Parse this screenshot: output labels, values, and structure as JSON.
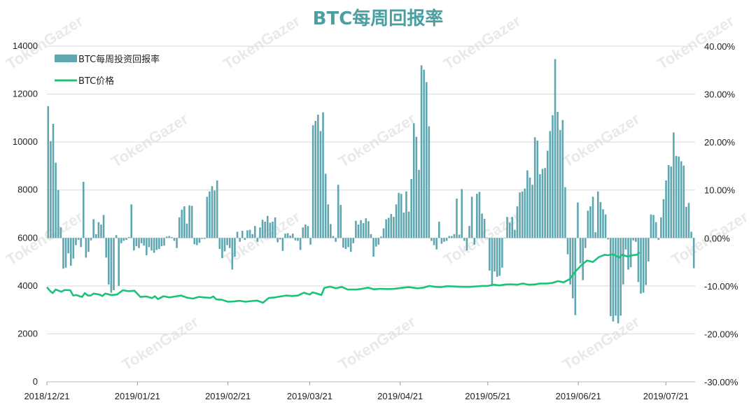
{
  "chart_data": {
    "type": "bar+line",
    "title": "BTC每周回报率",
    "legend": {
      "placement": "top-left",
      "entries": [
        {
          "label": "BTC每周投资回报率",
          "kind": "bar",
          "color": "#5fa7b0"
        },
        {
          "label": "BTC价格",
          "kind": "line",
          "color": "#19c37a"
        }
      ]
    },
    "left_axis": {
      "min": 0,
      "max": 14000,
      "ticks": [
        "0",
        "2000",
        "4000",
        "6000",
        "8000",
        "10000",
        "12000",
        "14000"
      ]
    },
    "right_axis": {
      "min": -30,
      "max": 40,
      "ticks": [
        "-30.00%",
        "-20.00%",
        "-10.00%",
        "0.00%",
        "10.00%",
        "20.00%",
        "30.00%",
        "40.00%"
      ]
    },
    "x_ticks": [
      "2018/12/21",
      "2019/01/21",
      "2019/02/21",
      "2019/03/21",
      "2019/04/21",
      "2019/05/21",
      "2019/06/21",
      "2019/07/21"
    ],
    "grid": "horizontal",
    "x_start_date": "2018-12-21",
    "num_days": 222,
    "watermark": "TokenGazer",
    "series": [
      {
        "name": "BTC每周投资回报率",
        "kind": "bar",
        "unit": "%",
        "values": [
          27.5,
          20.2,
          23.8,
          15.7,
          10,
          2.2,
          -6.4,
          -6.2,
          -3.2,
          -5.8,
          -4.3,
          -1.5,
          -0.4,
          -1.9,
          11.7,
          -4.1,
          -2.9,
          -0.5,
          3.9,
          0.8,
          3.3,
          2.8,
          4.8,
          -4.1,
          -9.7,
          -11.4,
          -10.9,
          0.6,
          -10,
          -1.1,
          -0.6,
          -0.4,
          0.2,
          7,
          -2.6,
          -1.7,
          -2.1,
          -1.1,
          -1.6,
          -3.6,
          -1.9,
          -2.6,
          -3.1,
          -2.5,
          -2.3,
          -1.7,
          -1.6,
          0.3,
          0.4,
          0.2,
          -0.6,
          -2.1,
          4.3,
          5.9,
          6.6,
          3,
          6.8,
          6.7,
          -1.3,
          -1.5,
          -1,
          -0.2,
          -0.2,
          8.6,
          9.7,
          10.8,
          9.9,
          12,
          -2.3,
          -4.2,
          -2.8,
          -1.5,
          -2.1,
          -6.6,
          -3.9,
          1.3,
          -0.8,
          1.5,
          -0.4,
          1.6,
          1.7,
          0.8,
          2.5,
          -0.8,
          2.2,
          3.8,
          3.4,
          4.6,
          3.2,
          3.4,
          4.3,
          -0.9,
          -0.3,
          -2.7,
          0.9,
          1,
          0.5,
          0.9,
          -0.5,
          -0.6,
          -2.5,
          2.2,
          2.8,
          2.5,
          -1.4,
          23.5,
          24.4,
          25.7,
          22.3,
          26.2,
          13.4,
          7,
          2.9,
          0.4,
          -0.8,
          11.1,
          6.9,
          -2,
          -2.3,
          -1.9,
          -2.9,
          -1.1,
          3.6,
          2.8,
          3.7,
          3.1,
          4.1,
          3.5,
          0.8,
          -3.9,
          -1.8,
          -1.4,
          0.3,
          2,
          3.9,
          4.2,
          5,
          4.4,
          7,
          9.4,
          9.2,
          5.3,
          9.7,
          5.5,
          12.3,
          23.9,
          21.1,
          14.2,
          36,
          35.1,
          32.5,
          23.3,
          -0.6,
          -1.5,
          -2.4,
          3.4,
          -1.2,
          -0.8,
          -0.6,
          0.4,
          0.4,
          0.8,
          8.2,
          0.7,
          10.2,
          -0.6,
          -2.6,
          2.5,
          8.6,
          -1.4,
          9.2,
          9.6,
          5.1,
          4,
          0.1,
          -6.8,
          -9.9,
          -7,
          -8.1,
          -7.9,
          -6.2,
          0,
          4.4,
          3.2,
          4.4,
          1.7,
          6.6,
          9.5,
          9.7,
          10.3,
          14.1,
          12.6,
          11.1,
          21,
          20.3,
          13.3,
          14.4,
          14.6,
          18.2,
          22.3,
          25.6,
          37.3,
          26.3,
          22.5,
          24.6,
          10.6,
          -3.4,
          -9.7,
          -12.6,
          -16.1,
          7.4,
          -5.3,
          -8.8,
          -2.1,
          5.7,
          6.6,
          8.6,
          1.2,
          9.7,
          7.5,
          6,
          4.9,
          -0.3,
          -16.3,
          -17.4,
          -16.2,
          -17.8,
          -16.2,
          -9.7,
          -2.4,
          -6.6,
          -6.1,
          -0.5,
          -0.8,
          -9.2,
          -11.6,
          -11.4,
          -9.8,
          -4.9,
          4.9,
          4.8,
          3.3,
          -0.4,
          4.3,
          8.1,
          12,
          15.2,
          14.9,
          22,
          17.1,
          17,
          16,
          15.1,
          6.5,
          7.3,
          1.3,
          -6.3
        ]
      },
      {
        "name": "BTC价格",
        "kind": "line",
        "unit": "USD",
        "points": [
          [
            0,
            3950
          ],
          [
            1,
            3800
          ],
          [
            2,
            3700
          ],
          [
            3,
            3850
          ],
          [
            4,
            3800
          ],
          [
            5,
            3760
          ],
          [
            6,
            3830
          ],
          [
            8,
            3820
          ],
          [
            9,
            3600
          ],
          [
            10,
            3620
          ],
          [
            12,
            3540
          ],
          [
            13,
            3700
          ],
          [
            14,
            3600
          ],
          [
            15,
            3600
          ],
          [
            16,
            3680
          ],
          [
            18,
            3640
          ],
          [
            19,
            3580
          ],
          [
            20,
            3680
          ],
          [
            22,
            3620
          ],
          [
            24,
            3640
          ],
          [
            26,
            3820
          ],
          [
            28,
            3780
          ],
          [
            30,
            3800
          ],
          [
            32,
            3540
          ],
          [
            34,
            3560
          ],
          [
            36,
            3490
          ],
          [
            37,
            3570
          ],
          [
            38,
            3450
          ],
          [
            40,
            3570
          ],
          [
            42,
            3520
          ],
          [
            44,
            3560
          ],
          [
            46,
            3600
          ],
          [
            48,
            3510
          ],
          [
            50,
            3470
          ],
          [
            52,
            3540
          ],
          [
            54,
            3520
          ],
          [
            56,
            3500
          ],
          [
            57,
            3560
          ],
          [
            58,
            3440
          ],
          [
            60,
            3420
          ],
          [
            62,
            3340
          ],
          [
            64,
            3350
          ],
          [
            66,
            3380
          ],
          [
            68,
            3340
          ],
          [
            70,
            3370
          ],
          [
            72,
            3390
          ],
          [
            74,
            3300
          ],
          [
            76,
            3500
          ],
          [
            78,
            3520
          ],
          [
            80,
            3560
          ],
          [
            82,
            3600
          ],
          [
            84,
            3580
          ],
          [
            86,
            3600
          ],
          [
            88,
            3720
          ],
          [
            90,
            3640
          ],
          [
            91,
            3730
          ],
          [
            92,
            3700
          ],
          [
            94,
            3620
          ],
          [
            95,
            3920
          ],
          [
            97,
            3970
          ],
          [
            99,
            3900
          ],
          [
            101,
            3960
          ],
          [
            103,
            3850
          ],
          [
            106,
            3850
          ],
          [
            108,
            3880
          ],
          [
            110,
            3930
          ],
          [
            112,
            3860
          ],
          [
            114,
            3880
          ],
          [
            117,
            3870
          ],
          [
            119,
            3880
          ],
          [
            122,
            3930
          ],
          [
            124,
            3950
          ],
          [
            127,
            3900
          ],
          [
            129,
            3930
          ],
          [
            131,
            4000
          ],
          [
            133,
            3960
          ],
          [
            135,
            3950
          ],
          [
            137,
            3990
          ],
          [
            139,
            3980
          ],
          [
            141,
            3970
          ],
          [
            143,
            3960
          ],
          [
            145,
            3960
          ],
          [
            147,
            3980
          ],
          [
            149,
            4000
          ],
          [
            151,
            4000
          ],
          [
            153,
            4050
          ],
          [
            155,
            4020
          ],
          [
            157,
            4060
          ],
          [
            159,
            4070
          ],
          [
            161,
            4050
          ],
          [
            163,
            4100
          ],
          [
            165,
            4050
          ],
          [
            167,
            4060
          ],
          [
            169,
            4100
          ],
          [
            171,
            4100
          ],
          [
            173,
            4120
          ],
          [
            175,
            4200
          ],
          [
            177,
            4150
          ],
          [
            179,
            4280
          ],
          [
            181,
            4600
          ],
          [
            183,
            4860
          ],
          [
            185,
            5060
          ],
          [
            187,
            5000
          ],
          [
            189,
            5200
          ],
          [
            191,
            5300
          ],
          [
            192,
            5280
          ],
          [
            194,
            5320
          ],
          [
            195,
            5250
          ],
          [
            196,
            5180
          ],
          [
            197,
            5300
          ],
          [
            199,
            5220
          ],
          [
            200,
            5270
          ],
          [
            202,
            5300
          ],
          [
            203,
            5400
          ]
        ]
      }
    ]
  }
}
